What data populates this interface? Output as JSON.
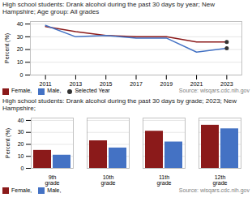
{
  "chart_data": [
    {
      "type": "line",
      "title": "High school students: Drank alcohol during the past 30 days by year; New Hampshire; Age group: All grades",
      "x": [
        2011,
        2013,
        2015,
        2017,
        2019,
        2021,
        2023
      ],
      "series": [
        {
          "name": "Female,",
          "color": "#8B1A1A",
          "values": [
            38,
            34,
            31,
            30,
            30,
            26,
            26
          ]
        },
        {
          "name": "Male,",
          "color": "#4472C4",
          "values": [
            39,
            30,
            31,
            29,
            29,
            18,
            21
          ]
        },
        {
          "name": "Selected Year",
          "type": "scatter",
          "marker": "circle",
          "color": "#333333",
          "x": [
            2023,
            2023
          ],
          "values": [
            26,
            21
          ]
        }
      ],
      "xlim": [
        2010,
        2024
      ],
      "xticks": [
        2011,
        2013,
        2015,
        2017,
        2019,
        2021,
        2023
      ],
      "ylim": [
        0,
        42
      ],
      "yticks": [
        0,
        10,
        20,
        30,
        40
      ],
      "ylabel": "Percent (%)",
      "grid": true,
      "annotations": [
        "Source: wisqars.cdc.nih.gov"
      ]
    },
    {
      "type": "bar",
      "title": "High school students: Drank alcohol during the past 30 days by grade; 2023; New Hampshire;",
      "categories": [
        "9th\ngrade",
        "10th\ngrade",
        "11th\ngrade",
        "12th\ngrade"
      ],
      "series": [
        {
          "name": "Female,",
          "color": "#8B1A1A",
          "values": [
            15,
            23,
            31,
            36
          ]
        },
        {
          "name": "Male,",
          "color": "#4472C4",
          "values": [
            11,
            17,
            22,
            33
          ]
        }
      ],
      "ylim": [
        0,
        42
      ],
      "yticks": [
        0,
        10,
        20,
        30,
        40
      ],
      "ylabel": "Percent (%)",
      "grid": true,
      "annotations": [
        "Source: wisqars.cdc.nih.gov"
      ]
    }
  ]
}
